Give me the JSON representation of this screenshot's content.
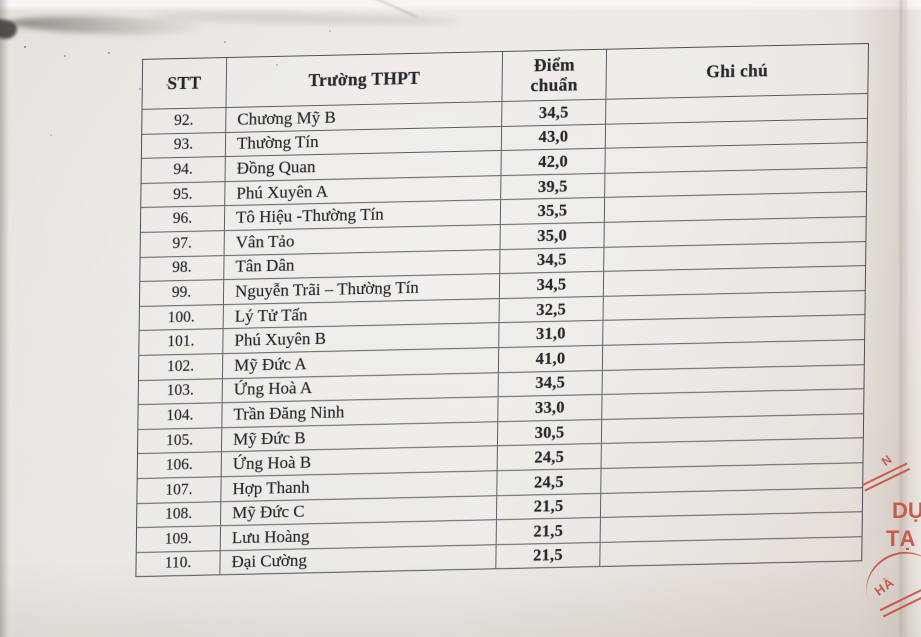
{
  "table": {
    "header": {
      "stt": "STT",
      "school": "Trường THPT",
      "score": "Điểm\nchuẩn",
      "note": "Ghi chú"
    },
    "rows": [
      {
        "stt": "92.",
        "school": "Chương Mỹ B",
        "score": "34,5",
        "note": ""
      },
      {
        "stt": "93.",
        "school": "Thường Tín",
        "score": "43,0",
        "note": ""
      },
      {
        "stt": "94.",
        "school": "Đồng Quan",
        "score": "42,0",
        "note": ""
      },
      {
        "stt": "95.",
        "school": "Phú Xuyên A",
        "score": "39,5",
        "note": ""
      },
      {
        "stt": "96.",
        "school": "Tô Hiệu -Thường Tín",
        "score": "35,5",
        "note": ""
      },
      {
        "stt": "97.",
        "school": "Vân Tảo",
        "score": "35,0",
        "note": ""
      },
      {
        "stt": "98.",
        "school": "Tân Dân",
        "score": "34,5",
        "note": ""
      },
      {
        "stt": "99.",
        "school": "Nguyễn Trãi – Thường Tín",
        "score": "34,5",
        "note": ""
      },
      {
        "stt": "100.",
        "school": "Lý Tử Tấn",
        "score": "32,5",
        "note": ""
      },
      {
        "stt": "101.",
        "school": "Phú Xuyên B",
        "score": "31,0",
        "note": ""
      },
      {
        "stt": "102.",
        "school": "Mỹ Đức A",
        "score": "41,0",
        "note": ""
      },
      {
        "stt": "103.",
        "school": "Ứng Hoà A",
        "score": "34,5",
        "note": ""
      },
      {
        "stt": "104.",
        "school": "Trần Đăng Ninh",
        "score": "33,0",
        "note": ""
      },
      {
        "stt": "105.",
        "school": "Mỹ Đức B",
        "score": "30,5",
        "note": ""
      },
      {
        "stt": "106.",
        "school": "Ứng Hoà B",
        "score": "24,5",
        "note": ""
      },
      {
        "stt": "107.",
        "school": "Hợp Thanh",
        "score": "24,5",
        "note": ""
      },
      {
        "stt": "108.",
        "school": "Mỹ Đức C",
        "score": "21,5",
        "note": ""
      },
      {
        "stt": "109.",
        "school": "Lưu Hoàng",
        "score": "21,5",
        "note": ""
      },
      {
        "stt": "110.",
        "school": "Đại Cường",
        "score": "21,5",
        "note": ""
      }
    ]
  },
  "stamp": {
    "color": "#c84b3b",
    "fragments": {
      "top": "N",
      "line1": "DỤ",
      "line2": "TẠ",
      "bottom": "HÀ"
    }
  }
}
